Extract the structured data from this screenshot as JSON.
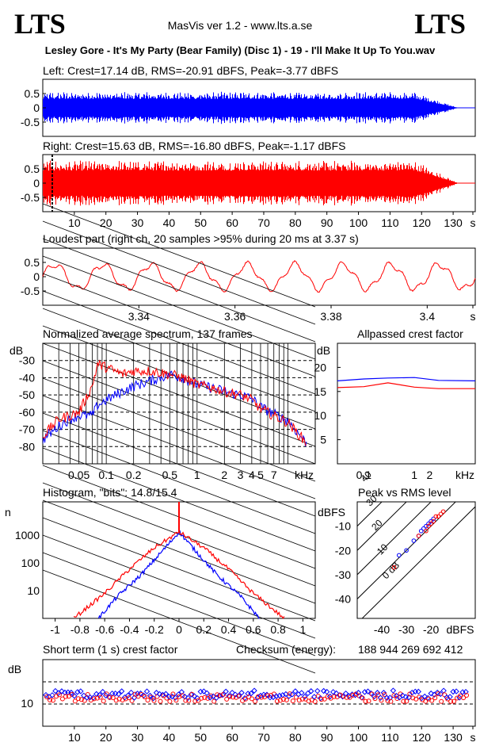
{
  "header": {
    "logo_left": "LTS",
    "logo_right": "LTS",
    "version": "MasVis ver 1.2 - www.lts.a.se",
    "track": "Lesley Gore - It's My Party (Bear Family) (Disc 1) - 19 - I'll Make It Up To You.wav"
  },
  "colors": {
    "left": "#0000ff",
    "right": "#ff0000",
    "axis": "#000000"
  },
  "panels": {
    "left_title": "Left: Crest=17.14 dB, RMS=-20.91 dBFS, Peak=-3.77 dBFS",
    "right_title": "Right: Crest=15.63 dB, RMS=-16.80 dBFS, Peak=-1.17 dBFS",
    "loudest_title": "Loudest part (right ch, 20 samples >95% during 20 ms at 3.37 s)",
    "spectrum_title": "Normalized average spectrum, 137 frames",
    "allpass_title": "Allpassed crest factor",
    "hist_title": "Histogram, \"bits\": 14.8/15.4",
    "peakrms_title": "Peak vs RMS level",
    "short_crest_title": "Short term (1 s) crest factor",
    "checksum_label": "Checksum (energy):",
    "checksum_value": "188 944 269 692 412"
  },
  "chart_data": [
    {
      "type": "line",
      "name": "left-waveform",
      "x_range": [
        0,
        137
      ],
      "ylim": [
        -1,
        1
      ],
      "y_ticks": [
        "0.5",
        "0",
        "-0.5"
      ],
      "stats": {
        "crest_db": 17.14,
        "rms_dbfs": -20.91,
        "peak_dbfs": -3.77
      },
      "series": [
        {
          "name": "Left",
          "envelope_peak": 0.6
        }
      ]
    },
    {
      "type": "line",
      "name": "right-waveform",
      "x_range": [
        0,
        137
      ],
      "ylim": [
        -1,
        1
      ],
      "y_ticks": [
        "0.5",
        "0",
        "-0.5"
      ],
      "x_ticks": [
        "10",
        "20",
        "30",
        "40",
        "50",
        "60",
        "70",
        "80",
        "90",
        "100",
        "110",
        "120",
        "130",
        "s"
      ],
      "loudest_marker_s": 3.37,
      "stats": {
        "crest_db": 15.63,
        "rms_dbfs": -16.8,
        "peak_dbfs": -1.17
      },
      "series": [
        {
          "name": "Right",
          "envelope_peak": 0.85
        }
      ]
    },
    {
      "type": "line",
      "name": "loudest-part",
      "xlim": [
        3.32,
        3.41
      ],
      "x_ticks": [
        "3.34",
        "3.36",
        "3.38",
        "3.4",
        "s"
      ],
      "y_ticks": [
        "0.5",
        "0",
        "-0.5"
      ],
      "ylim": [
        -1,
        1
      ]
    },
    {
      "type": "line",
      "name": "average-spectrum",
      "xscale": "log",
      "x_ticks": [
        "0.05",
        "0.1",
        "0.2",
        "0.5",
        "1",
        "2",
        "3",
        "4",
        "5",
        "7",
        "kHz"
      ],
      "y_ticks": [
        "-30",
        "-40",
        "-50",
        "-60",
        "-70",
        "-80"
      ],
      "ylabel": "dB",
      "ylim": [
        -90,
        -20
      ],
      "series": [
        {
          "name": "Left",
          "x": [
            0.02,
            0.03,
            0.04,
            0.05,
            0.07,
            0.08,
            0.1,
            0.15,
            0.2,
            0.3,
            0.5,
            0.7,
            1,
            1.5,
            2,
            3,
            4,
            5,
            7,
            10,
            16
          ],
          "y": [
            -76,
            -68,
            -64,
            -62,
            -62,
            -56,
            -53,
            -48,
            -45,
            -42,
            -38,
            -40,
            -44,
            -46,
            -48,
            -50,
            -52,
            -57,
            -61,
            -65,
            -78
          ]
        },
        {
          "name": "Right",
          "x": [
            0.02,
            0.03,
            0.04,
            0.05,
            0.07,
            0.08,
            0.1,
            0.15,
            0.2,
            0.3,
            0.5,
            0.7,
            1,
            1.5,
            2,
            3,
            4,
            5,
            7,
            10,
            16
          ],
          "y": [
            -74,
            -64,
            -62,
            -60,
            -45,
            -32,
            -34,
            -38,
            -36,
            -36,
            -38,
            -40,
            -44,
            -46,
            -48,
            -50,
            -53,
            -58,
            -62,
            -66,
            -78
          ]
        }
      ]
    },
    {
      "type": "line",
      "name": "allpassed-crest",
      "xscale": "log",
      "x_ticks": [
        "0.1",
        "1",
        "2",
        "kHz"
      ],
      "y_ticks": [
        "20",
        "15",
        "10",
        "5"
      ],
      "ylabel": "dB",
      "ylim": [
        0,
        25
      ],
      "series": [
        {
          "name": "Left",
          "x": [
            0.03,
            0.1,
            0.3,
            1,
            3,
            16
          ],
          "y": [
            17.2,
            17.6,
            17.8,
            17.9,
            17.3,
            17.2
          ]
        },
        {
          "name": "Right",
          "x": [
            0.03,
            0.1,
            0.3,
            1,
            3,
            16
          ],
          "y": [
            15.8,
            16.0,
            16.8,
            15.9,
            15.6,
            15.6
          ]
        }
      ]
    },
    {
      "type": "line",
      "name": "histogram",
      "yscale": "log",
      "ylabel": "n",
      "x_ticks": [
        "-1",
        "-0.8",
        "-0.6",
        "-0.4",
        "-0.2",
        "0",
        "0.2",
        "0.4",
        "0.6",
        "0.8",
        "1"
      ],
      "y_ticks": [
        "1000",
        "100",
        "10"
      ],
      "bits": {
        "left": 14.8,
        "right": 15.4
      },
      "series": [
        {
          "name": "Left",
          "x": [
            -0.65,
            -0.5,
            -0.3,
            -0.1,
            0,
            0.1,
            0.3,
            0.5,
            0.65
          ],
          "y": [
            1,
            6,
            40,
            400,
            1300,
            400,
            40,
            6,
            1
          ]
        },
        {
          "name": "Right",
          "x": [
            -0.85,
            -0.6,
            -0.4,
            -0.2,
            0,
            0.2,
            0.4,
            0.6,
            0.85
          ],
          "y": [
            1,
            8,
            60,
            350,
            1300,
            350,
            60,
            8,
            1
          ]
        }
      ]
    },
    {
      "type": "scatter",
      "name": "peak-vs-rms",
      "ylabel": "dBFS",
      "x_ticks": [
        "-40",
        "-30",
        "-20",
        "dBFS"
      ],
      "y_ticks": [
        "-10",
        "-20",
        "-30",
        "-40"
      ],
      "diagonal_labels": [
        "40",
        "30",
        "20",
        "10",
        "0 dB"
      ],
      "series": [
        {
          "name": "Left",
          "x": [
            -33,
            -30,
            -27,
            -25,
            -24,
            -23,
            -22,
            -21,
            -20,
            -19
          ],
          "y": [
            -22,
            -20,
            -16,
            -14,
            -12,
            -11,
            -10,
            -9,
            -8,
            -7
          ]
        },
        {
          "name": "Right",
          "x": [
            -35,
            -25,
            -22,
            -21,
            -20,
            -19,
            -18,
            -17,
            -16,
            -15
          ],
          "y": [
            -27,
            -14,
            -12,
            -10,
            -9,
            -8,
            -6,
            -6,
            -5,
            -4
          ]
        }
      ]
    },
    {
      "type": "scatter",
      "name": "short-term-crest",
      "ylabel": "dB",
      "y_ticks": [
        "10"
      ],
      "x_ticks": [
        "10",
        "20",
        "30",
        "40",
        "50",
        "60",
        "70",
        "80",
        "90",
        "100",
        "110",
        "120",
        "130",
        "s"
      ],
      "series": [
        {
          "name": "Left",
          "y_mean": 12
        },
        {
          "name": "Right",
          "y_mean": 11.5
        }
      ]
    }
  ]
}
